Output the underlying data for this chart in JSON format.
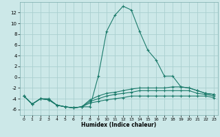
{
  "xlabel": "Humidex (Indice chaleur)",
  "background_color": "#cce8e8",
  "grid_color": "#aacfcf",
  "line_color": "#1a7a6a",
  "xlim": [
    -0.5,
    23.5
  ],
  "ylim": [
    -7,
    14
  ],
  "xticks": [
    0,
    1,
    2,
    3,
    4,
    5,
    6,
    7,
    8,
    9,
    10,
    11,
    12,
    13,
    14,
    15,
    16,
    17,
    18,
    19,
    20,
    21,
    22,
    23
  ],
  "yticks": [
    -6,
    -4,
    -2,
    0,
    2,
    4,
    6,
    8,
    10,
    12
  ],
  "series": [
    [
      [
        0,
        -3.5
      ],
      [
        1,
        -5.0
      ],
      [
        2,
        -4.0
      ],
      [
        3,
        -4.0
      ],
      [
        4,
        -5.2
      ],
      [
        5,
        -5.5
      ],
      [
        6,
        -5.7
      ],
      [
        7,
        -5.5
      ],
      [
        8,
        -5.5
      ],
      [
        9,
        0.2
      ],
      [
        10,
        8.5
      ],
      [
        11,
        11.5
      ],
      [
        12,
        13.2
      ],
      [
        13,
        12.5
      ],
      [
        14,
        8.5
      ],
      [
        15,
        5.0
      ],
      [
        16,
        3.2
      ],
      [
        17,
        0.2
      ],
      [
        18,
        0.2
      ],
      [
        19,
        -1.8
      ],
      [
        20,
        -2.0
      ],
      [
        21,
        -2.5
      ],
      [
        22,
        -3.0
      ],
      [
        23,
        -3.2
      ]
    ],
    [
      [
        0,
        -3.5
      ],
      [
        1,
        -5.0
      ],
      [
        2,
        -4.0
      ],
      [
        3,
        -4.2
      ],
      [
        4,
        -5.2
      ],
      [
        5,
        -5.5
      ],
      [
        6,
        -5.7
      ],
      [
        7,
        -5.5
      ],
      [
        8,
        -4.2
      ],
      [
        9,
        -3.5
      ],
      [
        10,
        -3.0
      ],
      [
        11,
        -2.8
      ],
      [
        12,
        -2.5
      ],
      [
        13,
        -2.2
      ],
      [
        14,
        -2.0
      ],
      [
        15,
        -2.0
      ],
      [
        16,
        -2.0
      ],
      [
        17,
        -2.0
      ],
      [
        18,
        -1.8
      ],
      [
        19,
        -1.8
      ],
      [
        20,
        -2.0
      ],
      [
        21,
        -2.5
      ],
      [
        22,
        -3.0
      ],
      [
        23,
        -3.2
      ]
    ],
    [
      [
        0,
        -3.5
      ],
      [
        1,
        -5.0
      ],
      [
        2,
        -4.0
      ],
      [
        3,
        -4.2
      ],
      [
        4,
        -5.2
      ],
      [
        5,
        -5.5
      ],
      [
        6,
        -5.7
      ],
      [
        7,
        -5.5
      ],
      [
        8,
        -4.5
      ],
      [
        9,
        -4.0
      ],
      [
        10,
        -3.5
      ],
      [
        11,
        -3.2
      ],
      [
        12,
        -3.0
      ],
      [
        13,
        -2.8
      ],
      [
        14,
        -2.5
      ],
      [
        15,
        -2.5
      ],
      [
        16,
        -2.5
      ],
      [
        17,
        -2.5
      ],
      [
        18,
        -2.5
      ],
      [
        19,
        -2.5
      ],
      [
        20,
        -2.5
      ],
      [
        21,
        -3.0
      ],
      [
        22,
        -3.2
      ],
      [
        23,
        -3.5
      ]
    ],
    [
      [
        0,
        -3.5
      ],
      [
        1,
        -5.0
      ],
      [
        2,
        -4.0
      ],
      [
        3,
        -4.2
      ],
      [
        4,
        -5.2
      ],
      [
        5,
        -5.5
      ],
      [
        6,
        -5.7
      ],
      [
        7,
        -5.5
      ],
      [
        8,
        -4.8
      ],
      [
        9,
        -4.5
      ],
      [
        10,
        -4.2
      ],
      [
        11,
        -4.0
      ],
      [
        12,
        -3.8
      ],
      [
        13,
        -3.5
      ],
      [
        14,
        -3.5
      ],
      [
        15,
        -3.5
      ],
      [
        16,
        -3.5
      ],
      [
        17,
        -3.5
      ],
      [
        18,
        -3.5
      ],
      [
        19,
        -3.5
      ],
      [
        20,
        -3.5
      ],
      [
        21,
        -3.5
      ],
      [
        22,
        -3.5
      ],
      [
        23,
        -3.8
      ]
    ]
  ]
}
